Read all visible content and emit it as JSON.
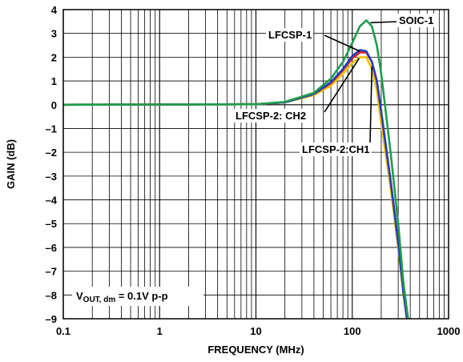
{
  "chart_data": {
    "type": "line",
    "title": "",
    "xlabel": "FREQUENCY (MHz)",
    "ylabel": "GAIN (dB)",
    "xscale": "log",
    "xlim": [
      0.1,
      1000
    ],
    "ylim": [
      -9,
      4
    ],
    "grid": true,
    "x_ticks": [
      "0.1",
      "1",
      "10",
      "100",
      "1000"
    ],
    "y_ticks": [
      "4",
      "3",
      "2",
      "1",
      "0",
      "–1",
      "–2",
      "–3",
      "–4",
      "–5",
      "–6",
      "–7",
      "–8",
      "–9"
    ],
    "condition": {
      "main": "V",
      "sub": "OUT, dm",
      "rest": " = 0.1V p-p"
    },
    "series": [
      {
        "name": "LFCSP-2: CH2",
        "color": "#f5c200",
        "points": [
          [
            0.1,
            0
          ],
          [
            10,
            0.02
          ],
          [
            20,
            0.1
          ],
          [
            40,
            0.4
          ],
          [
            60,
            0.8
          ],
          [
            80,
            1.3
          ],
          [
            100,
            1.75
          ],
          [
            120,
            2.0
          ],
          [
            140,
            2.0
          ],
          [
            160,
            1.5
          ],
          [
            180,
            0.6
          ],
          [
            200,
            -0.8
          ],
          [
            250,
            -3.5
          ],
          [
            300,
            -6.0
          ],
          [
            340,
            -8.0
          ],
          [
            370,
            -9.0
          ]
        ]
      },
      {
        "name": "LFCSP-2:CH1",
        "color": "#e02020",
        "points": [
          [
            0.1,
            0
          ],
          [
            10,
            0.02
          ],
          [
            20,
            0.1
          ],
          [
            40,
            0.45
          ],
          [
            60,
            0.9
          ],
          [
            80,
            1.45
          ],
          [
            100,
            1.95
          ],
          [
            120,
            2.2
          ],
          [
            140,
            2.2
          ],
          [
            160,
            1.8
          ],
          [
            180,
            1.0
          ],
          [
            200,
            -0.3
          ],
          [
            250,
            -3.2
          ],
          [
            300,
            -5.8
          ],
          [
            340,
            -7.9
          ],
          [
            370,
            -9.0
          ]
        ]
      },
      {
        "name": "LFCSP-1",
        "color": "#2040c0",
        "points": [
          [
            0.1,
            0
          ],
          [
            10,
            0.02
          ],
          [
            20,
            0.1
          ],
          [
            40,
            0.45
          ],
          [
            60,
            0.95
          ],
          [
            80,
            1.5
          ],
          [
            100,
            2.05
          ],
          [
            120,
            2.3
          ],
          [
            140,
            2.25
          ],
          [
            160,
            1.8
          ],
          [
            180,
            1.0
          ],
          [
            200,
            -0.3
          ],
          [
            250,
            -3.2
          ],
          [
            300,
            -5.8
          ],
          [
            340,
            -7.9
          ],
          [
            370,
            -9.0
          ]
        ]
      },
      {
        "name": "SOIC-1",
        "color": "#1e9e4a",
        "points": [
          [
            0.1,
            0
          ],
          [
            10,
            0.02
          ],
          [
            20,
            0.12
          ],
          [
            40,
            0.5
          ],
          [
            60,
            1.1
          ],
          [
            80,
            1.8
          ],
          [
            100,
            2.6
          ],
          [
            120,
            3.3
          ],
          [
            140,
            3.55
          ],
          [
            160,
            3.3
          ],
          [
            180,
            2.5
          ],
          [
            200,
            1.3
          ],
          [
            250,
            -2.0
          ],
          [
            300,
            -5.0
          ],
          [
            340,
            -7.5
          ],
          [
            380,
            -9.0
          ]
        ]
      }
    ],
    "annotations": [
      {
        "text": "SOIC-1",
        "target_x": 155,
        "target_y": 3.45
      },
      {
        "text": "LFCSP-1",
        "target_x": 120,
        "target_y": 2.25
      },
      {
        "text": "LFCSP-2: CH2",
        "target_x": 118,
        "target_y": 1.95
      },
      {
        "text": "LFCSP-2:CH1",
        "target_x": 160,
        "target_y": 1.6
      }
    ]
  }
}
